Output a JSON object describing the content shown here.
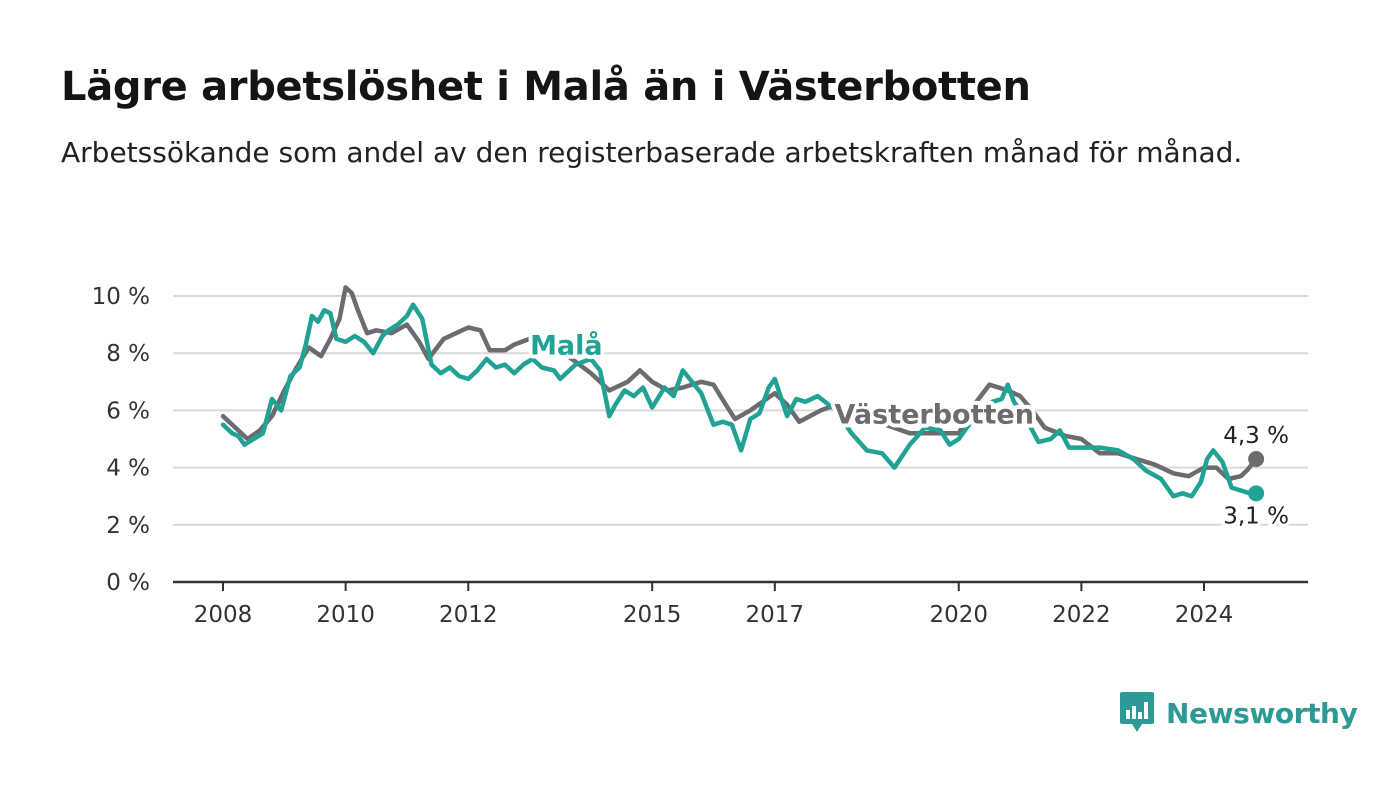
{
  "header": {
    "title": "Lägre arbetslöshet i Malå än i Västerbotten",
    "subtitle": "Arbetssökande som andel av den registerbaserade arbetskraften månad för månad."
  },
  "brand": {
    "name": "Newsworthy",
    "icon": "bar-chart-speech-bubble-icon",
    "color": "#2e9a95"
  },
  "chart_data": {
    "type": "line",
    "title": "Lägre arbetslöshet i Malå än i Västerbotten",
    "subtitle": "Arbetssökande som andel av den registerbaserade arbetskraften månad för månad.",
    "ylim": [
      0,
      10
    ],
    "yticks": [
      0,
      2,
      4,
      6,
      8,
      10
    ],
    "ytick_labels": [
      "0 %",
      "2 %",
      "4 %",
      "6 %",
      "8 %",
      "10 %"
    ],
    "xlim": [
      2007.75,
      2025.0
    ],
    "xticks": [
      2008,
      2010,
      2012,
      2015,
      2017,
      2020,
      2022,
      2024
    ],
    "xtick_labels": [
      "2008",
      "2010",
      "2012",
      "2015",
      "2017",
      "2020",
      "2022",
      "2024"
    ],
    "grid": true,
    "series": [
      {
        "name": "Västerbotten",
        "color": "#6c6c70",
        "end_label": "4,3 %",
        "points": [
          [
            2008.0,
            5.8
          ],
          [
            2008.25,
            5.3
          ],
          [
            2008.4,
            5.0
          ],
          [
            2008.6,
            5.3
          ],
          [
            2008.8,
            5.8
          ],
          [
            2009.0,
            6.7
          ],
          [
            2009.2,
            7.5
          ],
          [
            2009.4,
            8.2
          ],
          [
            2009.6,
            7.9
          ],
          [
            2009.75,
            8.5
          ],
          [
            2009.9,
            9.2
          ],
          [
            2010.0,
            10.3
          ],
          [
            2010.1,
            10.1
          ],
          [
            2010.2,
            9.5
          ],
          [
            2010.35,
            8.7
          ],
          [
            2010.5,
            8.8
          ],
          [
            2010.75,
            8.7
          ],
          [
            2011.0,
            9.0
          ],
          [
            2011.2,
            8.4
          ],
          [
            2011.35,
            7.8
          ],
          [
            2011.6,
            8.5
          ],
          [
            2011.8,
            8.7
          ],
          [
            2012.0,
            8.9
          ],
          [
            2012.2,
            8.8
          ],
          [
            2012.35,
            8.1
          ],
          [
            2012.6,
            8.1
          ],
          [
            2012.75,
            8.3
          ],
          [
            2013.0,
            8.5
          ],
          [
            2013.2,
            8.3
          ],
          [
            2013.5,
            8.1
          ],
          [
            2014.0,
            7.3
          ],
          [
            2014.3,
            6.7
          ],
          [
            2014.6,
            7.0
          ],
          [
            2014.8,
            7.4
          ],
          [
            2015.0,
            7.0
          ],
          [
            2015.25,
            6.7
          ],
          [
            2015.5,
            6.8
          ],
          [
            2015.8,
            7.0
          ],
          [
            2016.0,
            6.9
          ],
          [
            2016.2,
            6.2
          ],
          [
            2016.35,
            5.7
          ],
          [
            2016.6,
            6.0
          ],
          [
            2016.8,
            6.3
          ],
          [
            2017.0,
            6.6
          ],
          [
            2017.2,
            6.2
          ],
          [
            2017.4,
            5.6
          ],
          [
            2017.75,
            6.0
          ],
          [
            2018.0,
            6.2
          ],
          [
            2018.4,
            5.8
          ],
          [
            2018.8,
            5.5
          ],
          [
            2019.2,
            5.2
          ],
          [
            2019.6,
            5.2
          ],
          [
            2020.0,
            5.2
          ],
          [
            2020.25,
            6.2
          ],
          [
            2020.5,
            6.9
          ],
          [
            2020.8,
            6.7
          ],
          [
            2021.0,
            6.5
          ],
          [
            2021.2,
            6.0
          ],
          [
            2021.4,
            5.4
          ],
          [
            2021.75,
            5.1
          ],
          [
            2022.0,
            5.0
          ],
          [
            2022.3,
            4.5
          ],
          [
            2022.6,
            4.5
          ],
          [
            2022.9,
            4.3
          ],
          [
            2023.2,
            4.1
          ],
          [
            2023.5,
            3.8
          ],
          [
            2023.75,
            3.7
          ],
          [
            2024.0,
            4.0
          ],
          [
            2024.2,
            4.0
          ],
          [
            2024.4,
            3.6
          ],
          [
            2024.6,
            3.7
          ],
          [
            2024.7,
            3.9
          ],
          [
            2024.85,
            4.3
          ]
        ]
      },
      {
        "name": "Malå",
        "color": "#20a295",
        "end_label": "3,1 %",
        "points": [
          [
            2008.0,
            5.5
          ],
          [
            2008.15,
            5.2
          ],
          [
            2008.25,
            5.1
          ],
          [
            2008.35,
            4.8
          ],
          [
            2008.5,
            5.0
          ],
          [
            2008.65,
            5.2
          ],
          [
            2008.8,
            6.4
          ],
          [
            2008.95,
            6.0
          ],
          [
            2009.1,
            7.2
          ],
          [
            2009.25,
            7.5
          ],
          [
            2009.35,
            8.3
          ],
          [
            2009.45,
            9.3
          ],
          [
            2009.55,
            9.1
          ],
          [
            2009.65,
            9.5
          ],
          [
            2009.75,
            9.4
          ],
          [
            2009.85,
            8.5
          ],
          [
            2010.0,
            8.4
          ],
          [
            2010.15,
            8.6
          ],
          [
            2010.3,
            8.4
          ],
          [
            2010.45,
            8.0
          ],
          [
            2010.6,
            8.6
          ],
          [
            2010.7,
            8.8
          ],
          [
            2010.85,
            9.0
          ],
          [
            2011.0,
            9.3
          ],
          [
            2011.1,
            9.7
          ],
          [
            2011.25,
            9.2
          ],
          [
            2011.4,
            7.6
          ],
          [
            2011.55,
            7.3
          ],
          [
            2011.7,
            7.5
          ],
          [
            2011.85,
            7.2
          ],
          [
            2012.0,
            7.1
          ],
          [
            2012.15,
            7.4
          ],
          [
            2012.3,
            7.8
          ],
          [
            2012.45,
            7.5
          ],
          [
            2012.6,
            7.6
          ],
          [
            2012.75,
            7.3
          ],
          [
            2012.9,
            7.6
          ],
          [
            2013.05,
            7.8
          ],
          [
            2013.2,
            7.5
          ],
          [
            2013.4,
            7.4
          ],
          [
            2013.5,
            7.1
          ],
          [
            2013.75,
            7.6
          ],
          [
            2014.0,
            7.8
          ],
          [
            2014.15,
            7.4
          ],
          [
            2014.3,
            5.8
          ],
          [
            2014.4,
            6.2
          ],
          [
            2014.55,
            6.7
          ],
          [
            2014.7,
            6.5
          ],
          [
            2014.85,
            6.8
          ],
          [
            2015.0,
            6.1
          ],
          [
            2015.2,
            6.8
          ],
          [
            2015.35,
            6.5
          ],
          [
            2015.5,
            7.4
          ],
          [
            2015.65,
            7.0
          ],
          [
            2015.8,
            6.6
          ],
          [
            2016.0,
            5.5
          ],
          [
            2016.15,
            5.6
          ],
          [
            2016.3,
            5.5
          ],
          [
            2016.45,
            4.6
          ],
          [
            2016.6,
            5.7
          ],
          [
            2016.75,
            5.9
          ],
          [
            2016.9,
            6.8
          ],
          [
            2017.0,
            7.1
          ],
          [
            2017.2,
            5.8
          ],
          [
            2017.35,
            6.4
          ],
          [
            2017.5,
            6.3
          ],
          [
            2017.7,
            6.5
          ],
          [
            2018.0,
            6.0
          ],
          [
            2018.25,
            5.2
          ],
          [
            2018.5,
            4.6
          ],
          [
            2018.75,
            4.5
          ],
          [
            2018.95,
            4.0
          ],
          [
            2019.2,
            4.8
          ],
          [
            2019.45,
            5.4
          ],
          [
            2019.7,
            5.3
          ],
          [
            2019.85,
            4.8
          ],
          [
            2020.0,
            5.0
          ],
          [
            2020.2,
            5.6
          ],
          [
            2020.4,
            6.1
          ],
          [
            2020.55,
            6.3
          ],
          [
            2020.7,
            6.4
          ],
          [
            2020.8,
            6.9
          ],
          [
            2020.9,
            6.3
          ],
          [
            2021.1,
            5.7
          ],
          [
            2021.3,
            4.9
          ],
          [
            2021.5,
            5.0
          ],
          [
            2021.65,
            5.3
          ],
          [
            2021.8,
            4.7
          ],
          [
            2022.0,
            4.7
          ],
          [
            2022.3,
            4.7
          ],
          [
            2022.6,
            4.6
          ],
          [
            2022.85,
            4.3
          ],
          [
            2023.05,
            3.9
          ],
          [
            2023.3,
            3.6
          ],
          [
            2023.5,
            3.0
          ],
          [
            2023.65,
            3.1
          ],
          [
            2023.8,
            3.0
          ],
          [
            2023.95,
            3.5
          ],
          [
            2024.05,
            4.3
          ],
          [
            2024.15,
            4.6
          ],
          [
            2024.3,
            4.2
          ],
          [
            2024.45,
            3.3
          ],
          [
            2024.6,
            3.2
          ],
          [
            2024.75,
            3.1
          ],
          [
            2024.85,
            3.1
          ]
        ]
      }
    ]
  }
}
